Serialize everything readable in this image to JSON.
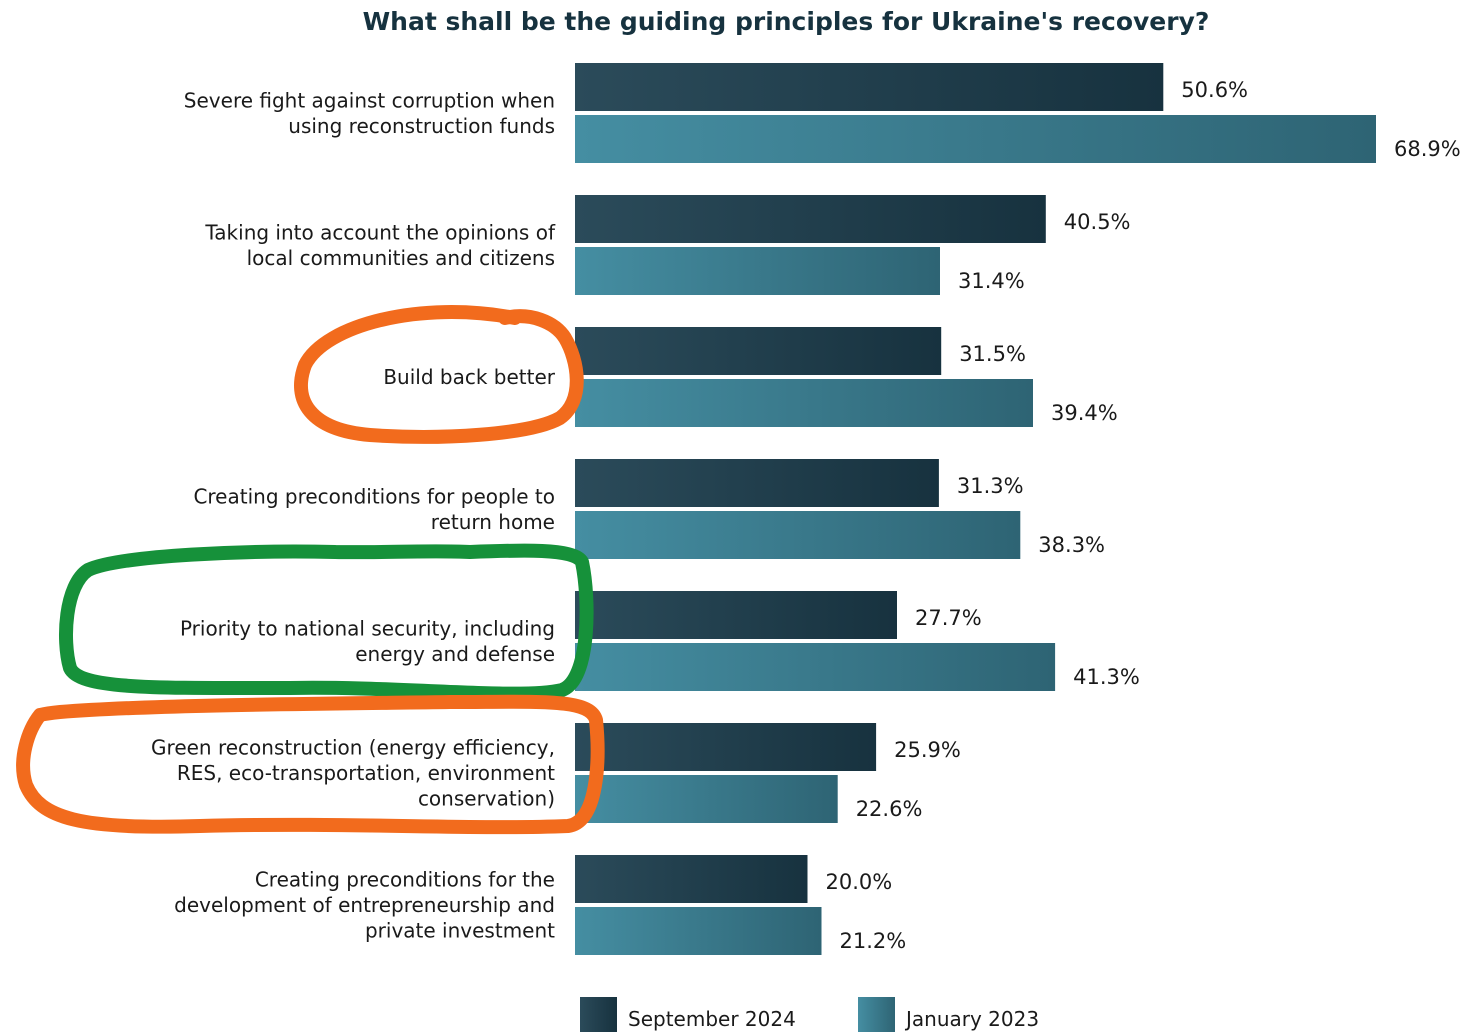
{
  "chart_data": {
    "type": "bar",
    "orientation": "horizontal",
    "title": "What shall be the guiding principles for Ukraine's recovery?",
    "categories": [
      [
        "Severe fight against corruption when",
        "using reconstruction funds"
      ],
      [
        "Taking into account the opinions of",
        "local communities and citizens"
      ],
      [
        "Build back better"
      ],
      [
        "Creating preconditions for people to",
        "return home"
      ],
      [
        "Priority to national security, including",
        "energy and defense"
      ],
      [
        "Green reconstruction (energy efficiency,",
        "RES, eco-transportation, environment",
        "conservation)"
      ],
      [
        "Creating preconditions for the",
        "development of entrepreneurship and",
        "private investment"
      ]
    ],
    "series": [
      {
        "name": "September 2024",
        "values": [
          50.6,
          40.5,
          31.5,
          31.3,
          27.7,
          25.9,
          20.0
        ],
        "labels": [
          "50.6%",
          "40.5%",
          "31.5%",
          "31.3%",
          "27.7%",
          "25.9%",
          "20.0%"
        ],
        "color_start": "#2b4b5a",
        "color_end": "#17323f"
      },
      {
        "name": "January 2023",
        "values": [
          68.9,
          31.4,
          39.4,
          38.3,
          41.3,
          22.6,
          21.2
        ],
        "labels": [
          "68.9%",
          "31.4%",
          "39.4%",
          "38.3%",
          "41.3%",
          "22.6%",
          "21.2%"
        ],
        "color_start": "#458ea2",
        "color_end": "#2e6474"
      }
    ],
    "xlim": [
      0,
      68.9
    ],
    "legend_position": "bottom"
  },
  "annotations": [
    {
      "shape": "hand-drawn-ellipse",
      "color": "#f26b1d",
      "target_category_index": 2
    },
    {
      "shape": "hand-drawn-rounded-rect",
      "color": "#16913a",
      "target_category_index": 4
    },
    {
      "shape": "hand-drawn-rounded-rect",
      "color": "#f26b1d",
      "target_category_index": 5
    }
  ]
}
